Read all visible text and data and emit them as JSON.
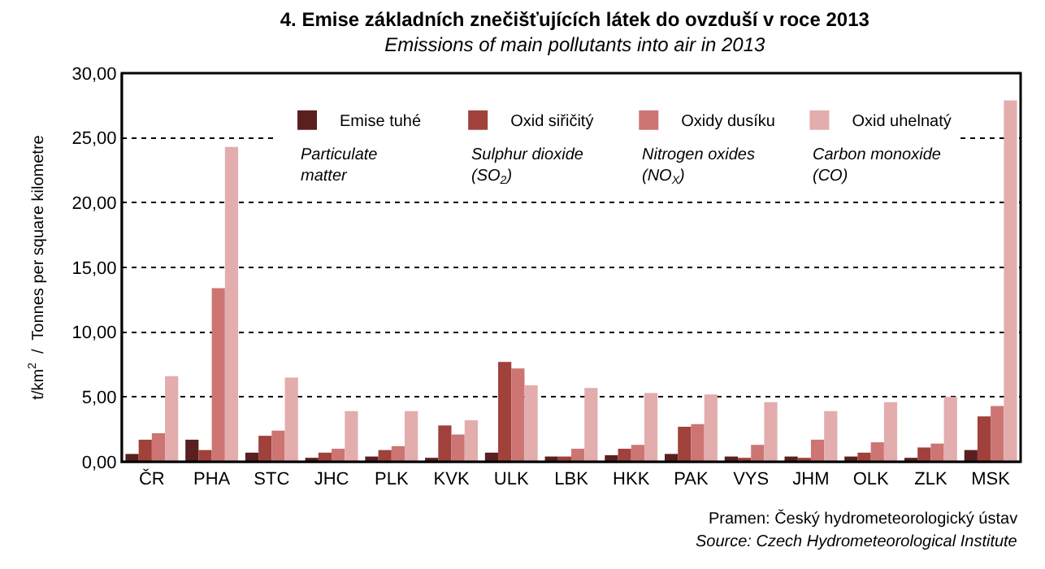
{
  "chart_data": {
    "type": "bar",
    "title": "4. Emise základních znečišťujících látek do ovzduší v roce 2013",
    "subtitle": "Emissions of main pollutants into air in 2013",
    "ylabel": "t/km$^{2}$  /  Tonnes per square kilometre",
    "categories": [
      "ČR",
      "PHA",
      "STC",
      "JHC",
      "PLK",
      "KVK",
      "ULK",
      "LBK",
      "HKK",
      "PAK",
      "VYS",
      "JHM",
      "OLK",
      "ZLK",
      "MSK"
    ],
    "series": [
      {
        "name": "Emise tuhé",
        "color": "#5a1f1f",
        "values": [
          0.6,
          1.7,
          0.7,
          0.3,
          0.4,
          0.3,
          0.7,
          0.4,
          0.5,
          0.6,
          0.4,
          0.4,
          0.4,
          0.3,
          0.9
        ]
      },
      {
        "name": "Oxid siřičitý",
        "color": "#a0413c",
        "values": [
          1.7,
          0.9,
          2.0,
          0.7,
          0.9,
          2.8,
          7.7,
          0.4,
          1.0,
          2.7,
          0.3,
          0.3,
          0.7,
          1.1,
          3.5
        ]
      },
      {
        "name": "Oxidy dusíku",
        "color": "#cc7573",
        "values": [
          2.2,
          13.4,
          2.4,
          1.0,
          1.2,
          2.1,
          7.2,
          1.0,
          1.3,
          2.9,
          1.3,
          1.7,
          1.5,
          1.4,
          4.3
        ]
      },
      {
        "name": "Oxid uhelnatý",
        "color": "#e3adad",
        "values": [
          6.6,
          24.3,
          6.5,
          3.9,
          3.9,
          3.2,
          5.9,
          5.7,
          5.3,
          5.2,
          4.6,
          3.9,
          4.6,
          5.0,
          27.9
        ]
      }
    ],
    "ylim": [
      0,
      30
    ],
    "yticks": [
      {
        "value": 0,
        "label": "0,00"
      },
      {
        "value": 5,
        "label": "5,00"
      },
      {
        "value": 10,
        "label": "10,00"
      },
      {
        "value": 15,
        "label": "15,00"
      },
      {
        "value": 20,
        "label": "20,00"
      },
      {
        "value": 25,
        "label": "25,00"
      },
      {
        "value": 30,
        "label": "30,00"
      }
    ],
    "grid": "y",
    "legend": "top",
    "annotations": [
      "Particulate matter",
      "Sulphur dioxide (SO$_{2}$)",
      "Nitrogen oxides (NO$_{X}$)",
      "Carbon monoxide (CO)",
      "Pramen: Český hydrometeorologický ústav",
      "Source: Czech Hydrometeorological Institute"
    ]
  }
}
